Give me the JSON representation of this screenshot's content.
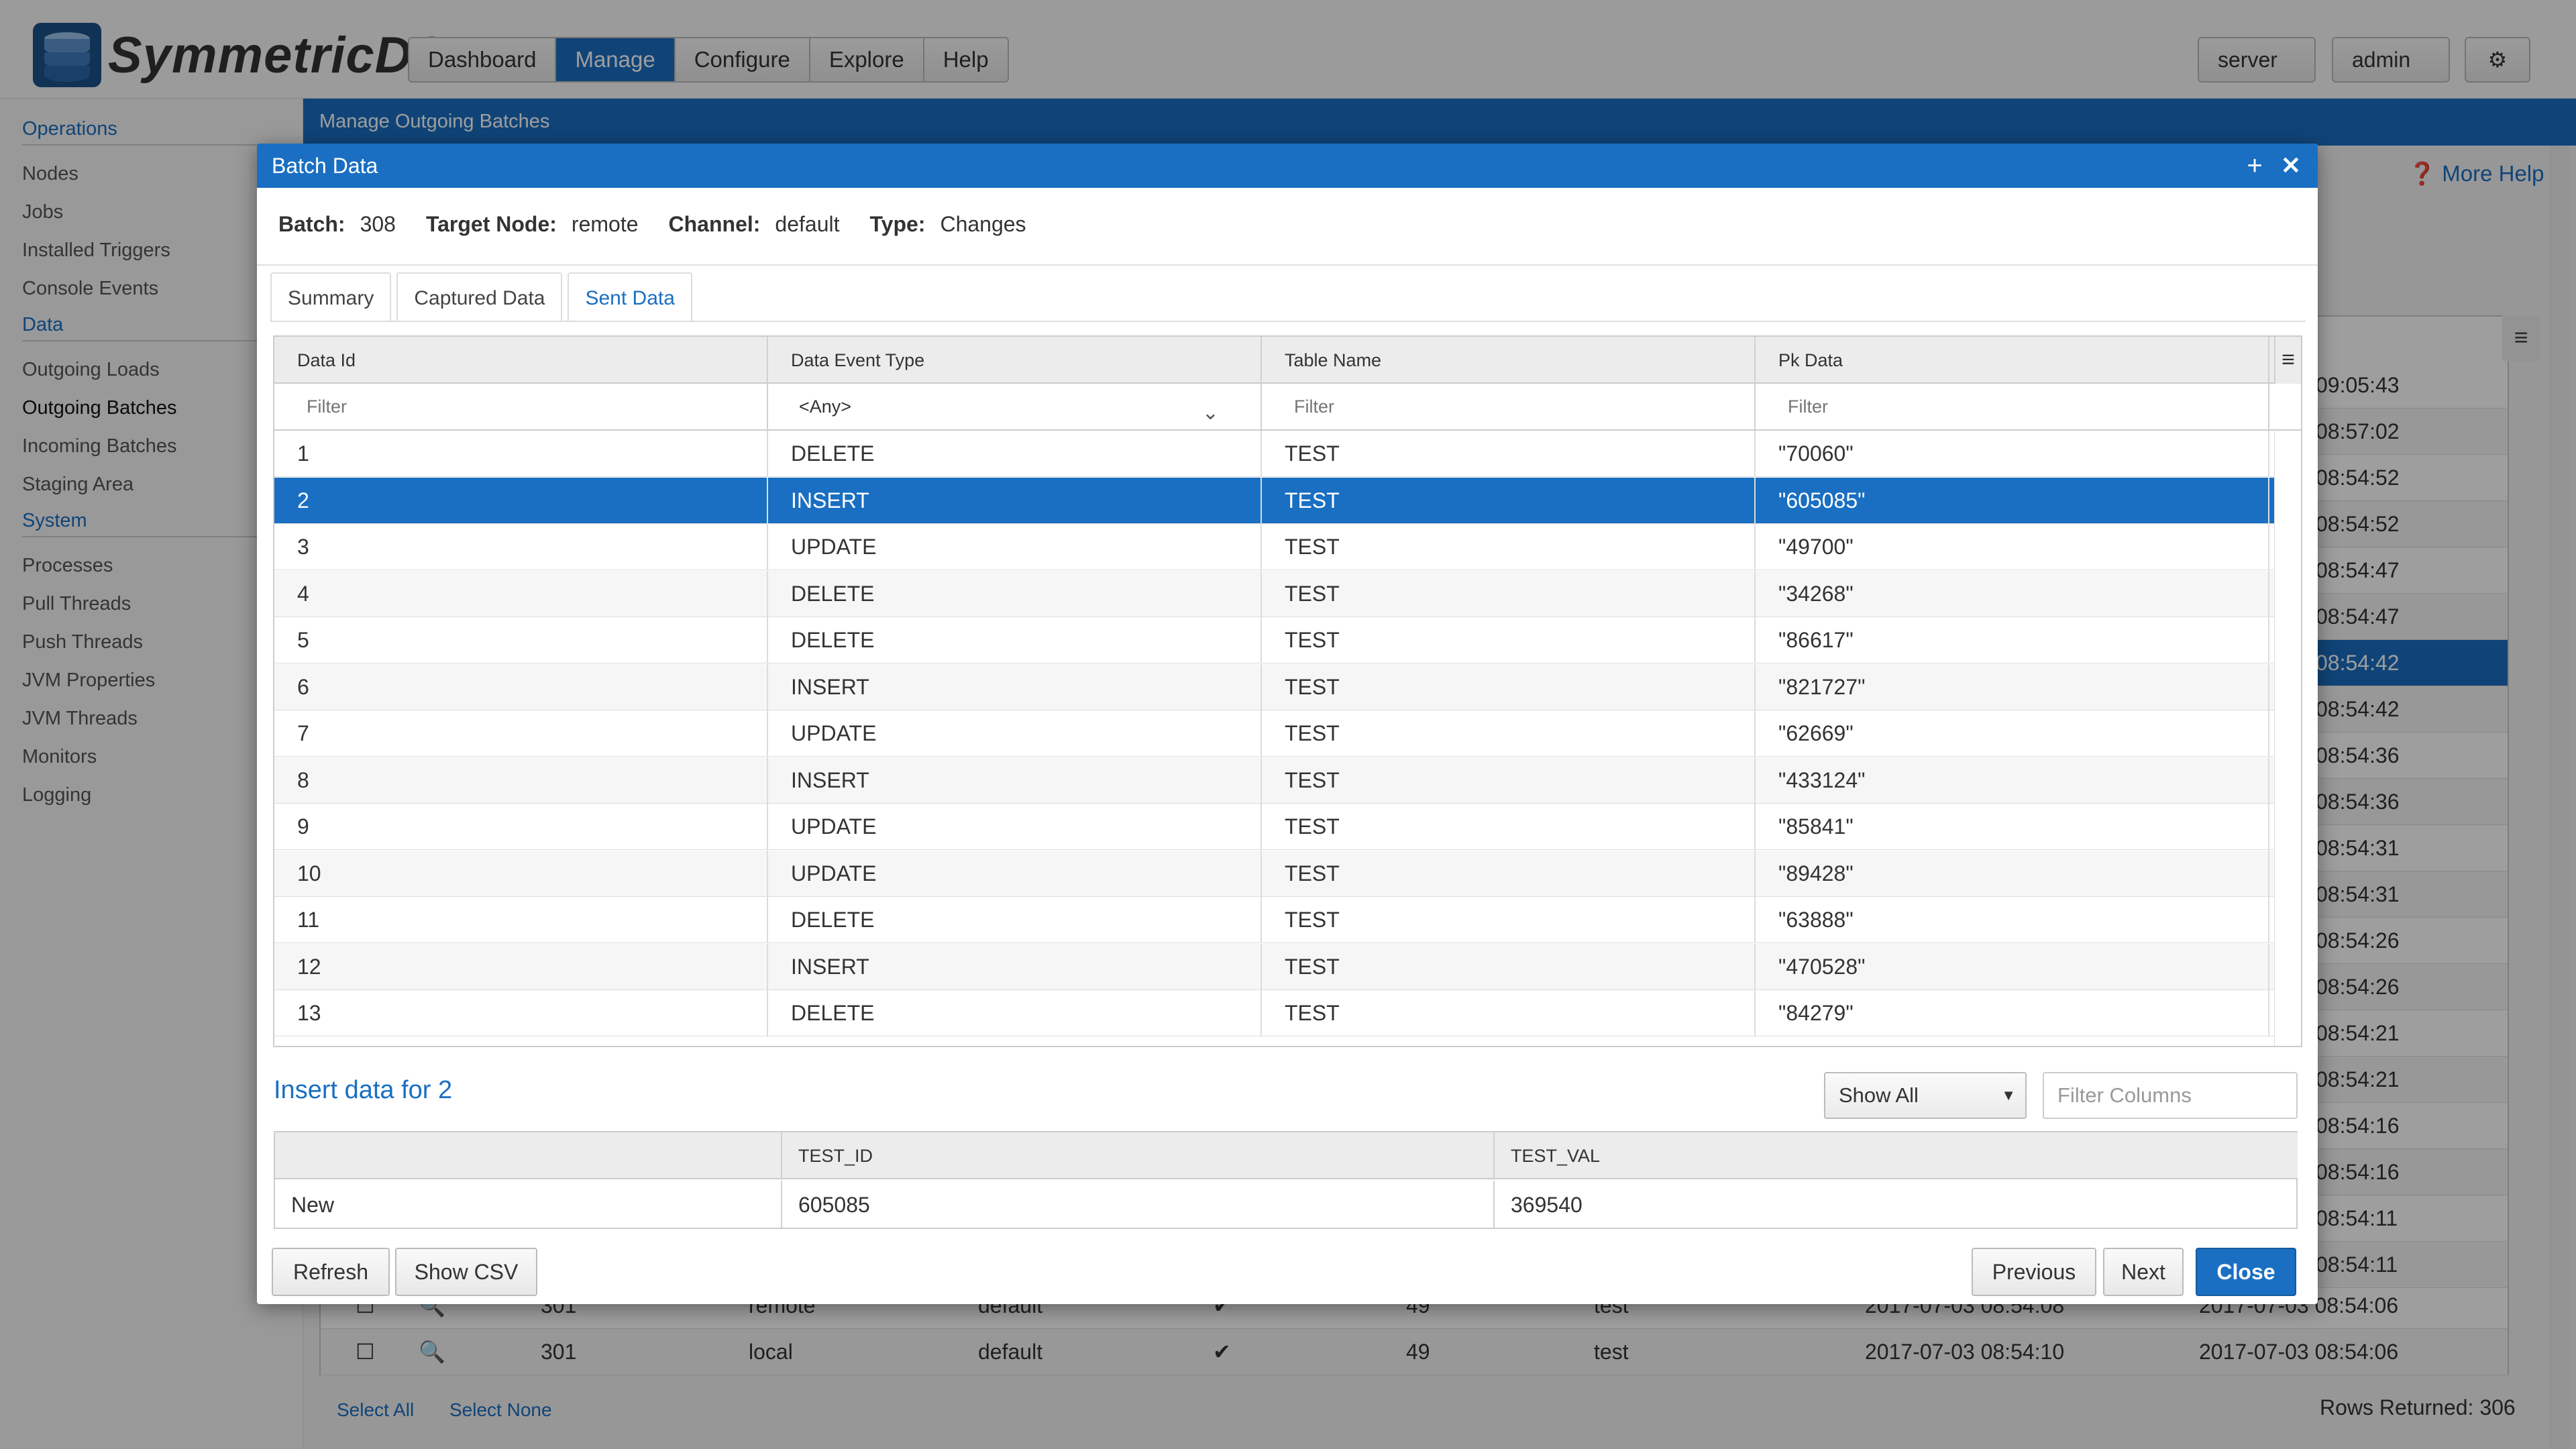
{
  "app": {
    "logo_text": "SymmetricDS",
    "nav": [
      "Dashboard",
      "Manage",
      "Configure",
      "Explore",
      "Help"
    ],
    "server_label": "server",
    "admin_label": "admin",
    "sidebar": [
      {
        "section": "Operations",
        "items": [
          "Nodes",
          "Jobs",
          "Installed Triggers",
          "Console Events"
        ]
      },
      {
        "section": "Data",
        "items": [
          "Outgoing Loads",
          "Outgoing Batches",
          "Incoming Batches",
          "Staging Area"
        ]
      },
      {
        "section": "System",
        "items": [
          "Processes",
          "Pull Threads",
          "Push Threads",
          "JVM Properties",
          "JVM Threads",
          "Monitors",
          "Logging"
        ]
      }
    ],
    "content_title": "Manage Outgoing Batches",
    "more_help": "More Help",
    "bg_times": [
      "09:05:43",
      "08:57:02",
      "08:54:52",
      "08:54:52",
      "08:54:47",
      "08:54:47",
      "08:54:42",
      "08:54:42",
      "08:54:36",
      "08:54:36",
      "08:54:31",
      "08:54:31",
      "08:54:26",
      "08:54:26",
      "08:54:21",
      "08:54:21",
      "08:54:16",
      "08:54:16",
      "08:54:11",
      "08:54:11"
    ],
    "bg_bottom_rows": [
      {
        "batch": "301",
        "node": "remote",
        "channel": "default",
        "rows": "49",
        "router": "test",
        "create": "2017-07-03 08:54:08",
        "last": "2017-07-03 08:54:06"
      },
      {
        "batch": "301",
        "node": "local",
        "channel": "default",
        "rows": "49",
        "router": "test",
        "create": "2017-07-03 08:54:10",
        "last": "2017-07-03 08:54:06"
      }
    ],
    "select_all": "Select All",
    "select_none": "Select None",
    "rows_returned": "Rows Returned: 306"
  },
  "modal": {
    "title": "Batch Data",
    "info": {
      "batch_label": "Batch:",
      "batch": "308",
      "target_label": "Target Node:",
      "target": "remote",
      "channel_label": "Channel:",
      "channel": "default",
      "type_label": "Type:",
      "type": "Changes"
    },
    "tabs": [
      "Summary",
      "Captured Data",
      "Sent Data"
    ],
    "grid": {
      "columns": [
        "Data Id",
        "Data Event Type",
        "Table Name",
        "Pk Data"
      ],
      "filter_placeholder": "Filter",
      "event_filter": "<Any>",
      "rows": [
        {
          "id": "1",
          "type": "DELETE",
          "table": "TEST",
          "pk": "\"70060\""
        },
        {
          "id": "2",
          "type": "INSERT",
          "table": "TEST",
          "pk": "\"605085\""
        },
        {
          "id": "3",
          "type": "UPDATE",
          "table": "TEST",
          "pk": "\"49700\""
        },
        {
          "id": "4",
          "type": "DELETE",
          "table": "TEST",
          "pk": "\"34268\""
        },
        {
          "id": "5",
          "type": "DELETE",
          "table": "TEST",
          "pk": "\"86617\""
        },
        {
          "id": "6",
          "type": "INSERT",
          "table": "TEST",
          "pk": "\"821727\""
        },
        {
          "id": "7",
          "type": "UPDATE",
          "table": "TEST",
          "pk": "\"62669\""
        },
        {
          "id": "8",
          "type": "INSERT",
          "table": "TEST",
          "pk": "\"433124\""
        },
        {
          "id": "9",
          "type": "UPDATE",
          "table": "TEST",
          "pk": "\"85841\""
        },
        {
          "id": "10",
          "type": "UPDATE",
          "table": "TEST",
          "pk": "\"89428\""
        },
        {
          "id": "11",
          "type": "DELETE",
          "table": "TEST",
          "pk": "\"63888\""
        },
        {
          "id": "12",
          "type": "INSERT",
          "table": "TEST",
          "pk": "\"470528\""
        },
        {
          "id": "13",
          "type": "DELETE",
          "table": "TEST",
          "pk": "\"84279\""
        }
      ]
    },
    "insert_title": "Insert data for 2",
    "show_all": "Show All",
    "filter_columns": "Filter Columns",
    "detail": {
      "columns": [
        "",
        "TEST_ID",
        "TEST_VAL"
      ],
      "row": [
        "New",
        "605085",
        "369540"
      ]
    },
    "buttons": {
      "refresh": "Refresh",
      "show_csv": "Show CSV",
      "previous": "Previous",
      "next": "Next",
      "close": "Close"
    }
  },
  "colors": {
    "accent": "#1a6fc2",
    "selected_row": "#1a6fc2"
  }
}
